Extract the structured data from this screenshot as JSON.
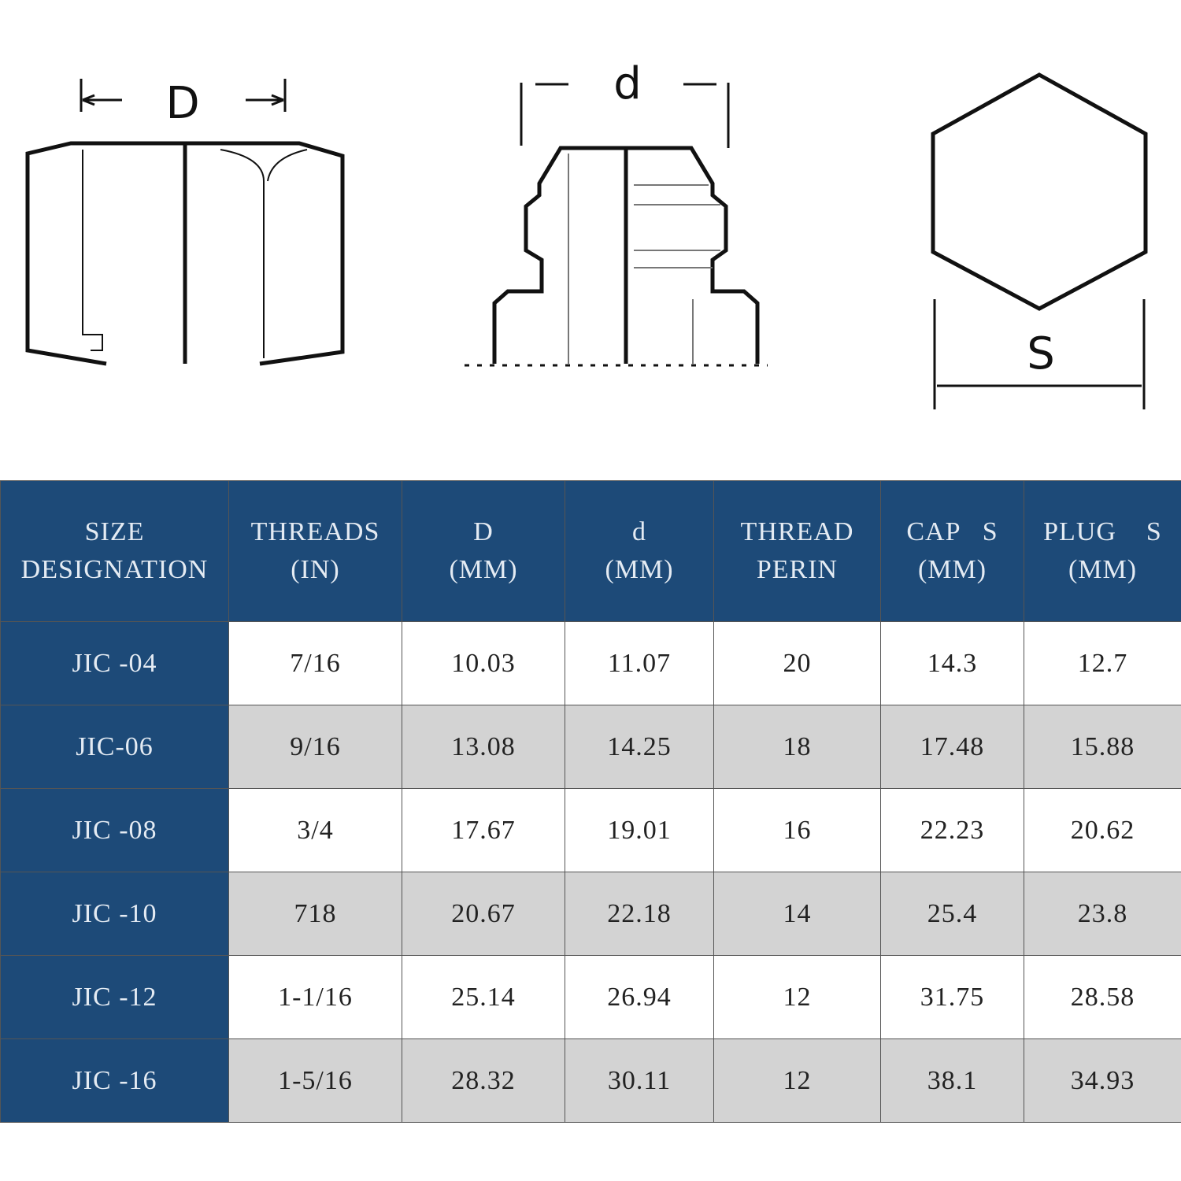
{
  "diagram": {
    "labels": {
      "nut": "D",
      "fitting": "d",
      "hex": "S"
    }
  },
  "table": {
    "header": [
      [
        "SIZE",
        "DESIGNATION"
      ],
      [
        "THREADS",
        "(IN)"
      ],
      [
        "D",
        "(MM)"
      ],
      [
        "d",
        "(MM)"
      ],
      [
        "THREAD",
        "PERIN"
      ],
      [
        "CAP   S",
        "(MM)"
      ],
      [
        "PLUG    S",
        "(MM)"
      ]
    ],
    "rows": [
      [
        "JIC -04",
        "7/16",
        "10.03",
        "11.07",
        "20",
        "14.3",
        "12.7"
      ],
      [
        "JIC-06",
        "9/16",
        "13.08",
        "14.25",
        "18",
        "17.48",
        "15.88"
      ],
      [
        "JIC -08",
        "3/4",
        "17.67",
        "19.01",
        "16",
        "22.23",
        "20.62"
      ],
      [
        "JIC -10",
        "718",
        "20.67",
        "22.18",
        "14",
        "25.4",
        "23.8"
      ],
      [
        "JIC -12",
        "1-1/16",
        "25.14",
        "26.94",
        "12",
        "31.75",
        "28.58"
      ],
      [
        "JIC -16",
        "1-5/16",
        "28.32",
        "30.11",
        "12",
        "38.1",
        "34.93"
      ]
    ]
  }
}
